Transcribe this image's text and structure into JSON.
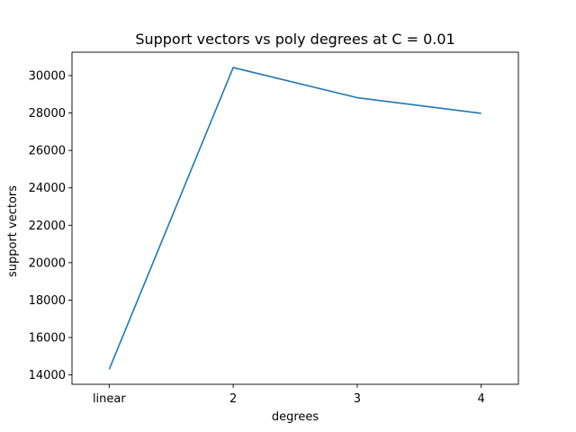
{
  "chart_data": {
    "type": "line",
    "title": "Support vectors vs poly degrees at C = 0.01",
    "xlabel": "degrees",
    "ylabel": "support vectors",
    "categories": [
      "linear",
      "2",
      "3",
      "4"
    ],
    "series": [
      {
        "values": [
          14300,
          30430,
          28820,
          27980
        ]
      }
    ],
    "yticks": [
      14000,
      16000,
      18000,
      20000,
      22000,
      24000,
      26000,
      28000,
      30000
    ],
    "ylim": [
      13500,
      31250
    ],
    "grid": false,
    "colors": {
      "line": "#1f77b4",
      "axes": "#000000"
    }
  }
}
